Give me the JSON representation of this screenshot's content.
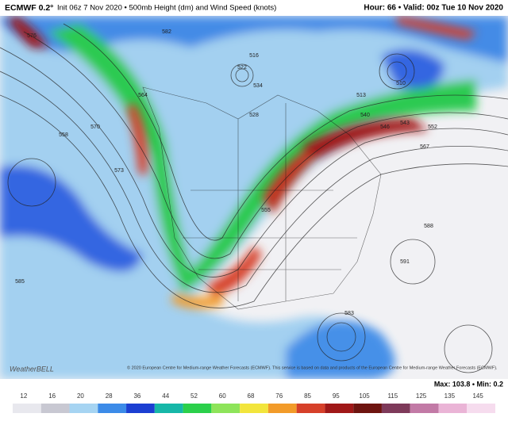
{
  "header": {
    "model": "ECMWF 0.2°",
    "init": "Init 06z 7 Nov 2020 • 500mb Height (dm) and Wind Speed (knots)",
    "hour": "Hour: 66 • Valid: 00z Tue 10 Nov 2020"
  },
  "map": {
    "contour_labels": [
      "576",
      "570",
      "564",
      "552",
      "540",
      "528",
      "522",
      "516",
      "510",
      "513",
      "546",
      "543",
      "558",
      "567",
      "573",
      "582",
      "588",
      "585",
      "591",
      "555",
      "534",
      "583"
    ],
    "logo": "WeatherBELL",
    "copyright": "© 2020 European Centre for Medium-range Weather Forecasts (ECMWF). This service is based on data and products of the European Centre for Medium-range Weather Forecasts (ECMWF).",
    "max_min": "Max: 103.8 • Min: 0.2"
  },
  "colorbar": {
    "labels": [
      "12",
      "16",
      "20",
      "28",
      "36",
      "44",
      "52",
      "60",
      "68",
      "76",
      "85",
      "95",
      "105",
      "115",
      "125",
      "135",
      "145"
    ],
    "colors": [
      "#e8e8ee",
      "#c8c8d2",
      "#a6d4f2",
      "#3c8be8",
      "#1c3fd2",
      "#17b7a8",
      "#2bd04b",
      "#8ee45a",
      "#f2e53c",
      "#f29b2a",
      "#d6402a",
      "#a01818",
      "#6e1410",
      "#7e3a5a",
      "#c27aa6",
      "#eab4d6",
      "#f6dcee"
    ]
  }
}
